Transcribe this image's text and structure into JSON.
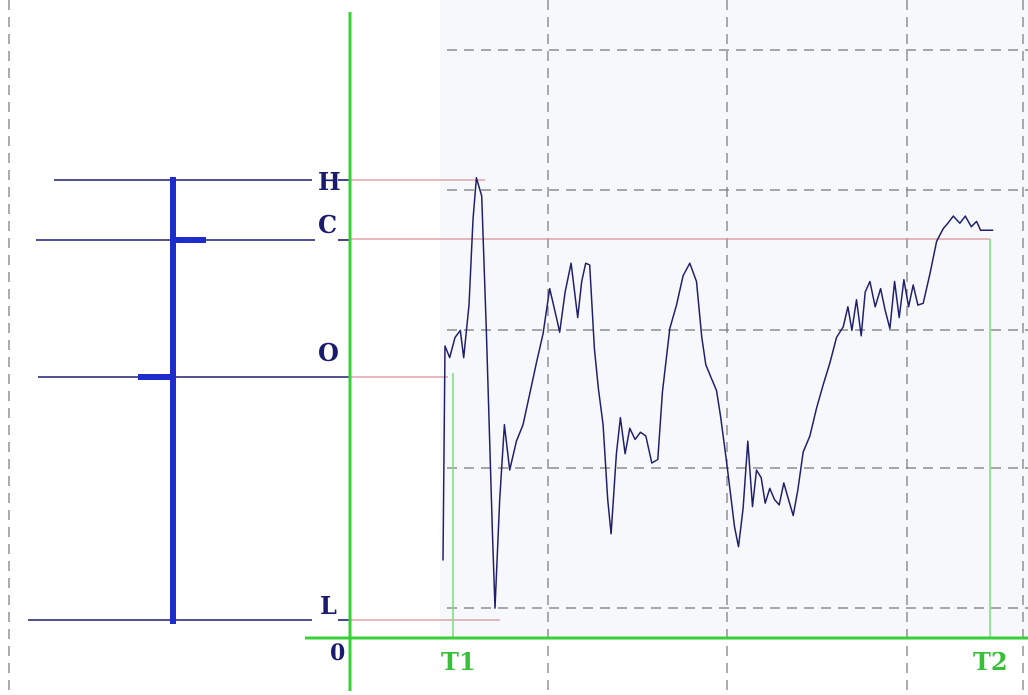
{
  "labels": {
    "high": "H",
    "close": "C",
    "open": "O",
    "low": "L",
    "origin": "0",
    "t1": "T1",
    "t2": "T2"
  },
  "colors": {
    "axis": "#38d038",
    "navy": "#1b1b6e",
    "bar": "#1f2ccc",
    "pink": "#d9909a",
    "grid": "#777777",
    "price_line": "#20206a",
    "t_line": "#7ee07e",
    "panel_bg": "#f6f8fb"
  },
  "chart_data": {
    "type": "line",
    "title": "",
    "xlabel": "",
    "ylabel": "",
    "x_tick_labels": [
      "T1",
      "T2"
    ],
    "y_tick_labels": [
      "L",
      "O",
      "C",
      "H"
    ],
    "ylim": [
      0,
      100
    ],
    "series": [
      {
        "values": [
          [
            0.0,
            13.6
          ],
          [
            0.3,
            61.8
          ],
          [
            1.0,
            59.2
          ],
          [
            1.8,
            63.7
          ],
          [
            2.6,
            65.3
          ],
          [
            3.1,
            59.2
          ],
          [
            3.9,
            71.0
          ],
          [
            4.5,
            90.2
          ],
          [
            5.0,
            99.6
          ],
          [
            5.8,
            95.5
          ],
          [
            6.5,
            64.9
          ],
          [
            7.4,
            20.0
          ],
          [
            7.8,
            2.9
          ],
          [
            8.5,
            27.3
          ],
          [
            9.2,
            44.1
          ],
          [
            10.0,
            33.9
          ],
          [
            11.0,
            40.4
          ],
          [
            12.0,
            44.1
          ],
          [
            13.0,
            51.0
          ],
          [
            14.0,
            58.0
          ],
          [
            15.0,
            64.5
          ],
          [
            16.0,
            74.7
          ],
          [
            17.0,
            68.2
          ],
          [
            17.5,
            64.9
          ],
          [
            18.3,
            73.9
          ],
          [
            19.2,
            80.4
          ],
          [
            20.2,
            68.2
          ],
          [
            20.8,
            76.3
          ],
          [
            21.4,
            80.4
          ],
          [
            22.0,
            80.0
          ],
          [
            22.7,
            61.2
          ],
          [
            23.3,
            52.2
          ],
          [
            24.0,
            44.1
          ],
          [
            24.7,
            27.3
          ],
          [
            25.2,
            19.6
          ],
          [
            26.0,
            37.6
          ],
          [
            26.6,
            45.7
          ],
          [
            27.3,
            37.6
          ],
          [
            28.0,
            43.3
          ],
          [
            28.8,
            40.8
          ],
          [
            29.6,
            42.4
          ],
          [
            30.4,
            41.6
          ],
          [
            31.3,
            35.5
          ],
          [
            32.2,
            36.3
          ],
          [
            32.9,
            51.4
          ],
          [
            34.0,
            65.7
          ],
          [
            35.0,
            71.0
          ],
          [
            36.0,
            77.6
          ],
          [
            37.0,
            80.4
          ],
          [
            38.0,
            76.3
          ],
          [
            38.8,
            63.7
          ],
          [
            39.4,
            57.6
          ],
          [
            40.2,
            54.7
          ],
          [
            41.0,
            51.8
          ],
          [
            41.6,
            46.1
          ],
          [
            42.4,
            37.1
          ],
          [
            43.1,
            28.6
          ],
          [
            43.7,
            21.2
          ],
          [
            44.3,
            16.7
          ],
          [
            45.0,
            25.3
          ],
          [
            45.7,
            40.4
          ],
          [
            46.4,
            25.7
          ],
          [
            47.0,
            33.9
          ],
          [
            47.7,
            32.2
          ],
          [
            48.3,
            26.5
          ],
          [
            49.0,
            29.8
          ],
          [
            49.7,
            27.3
          ],
          [
            50.4,
            26.1
          ],
          [
            51.1,
            31.0
          ],
          [
            51.8,
            27.3
          ],
          [
            52.5,
            23.7
          ],
          [
            53.2,
            29.4
          ],
          [
            54.0,
            38.0
          ],
          [
            55.0,
            41.6
          ],
          [
            56.0,
            47.8
          ],
          [
            57.0,
            53.1
          ],
          [
            58.0,
            58.0
          ],
          [
            59.0,
            63.7
          ],
          [
            60.0,
            66.1
          ],
          [
            60.7,
            70.6
          ],
          [
            61.3,
            65.3
          ],
          [
            62.0,
            72.2
          ],
          [
            62.7,
            64.1
          ],
          [
            63.3,
            73.9
          ],
          [
            64.0,
            76.3
          ],
          [
            64.8,
            70.6
          ],
          [
            65.6,
            74.7
          ],
          [
            66.3,
            69.8
          ],
          [
            67.0,
            65.7
          ],
          [
            67.7,
            76.3
          ],
          [
            68.4,
            68.2
          ],
          [
            69.1,
            76.7
          ],
          [
            69.8,
            70.6
          ],
          [
            70.5,
            75.5
          ],
          [
            71.2,
            71.0
          ],
          [
            72.0,
            71.4
          ],
          [
            73.0,
            78.0
          ],
          [
            74.0,
            85.3
          ],
          [
            75.0,
            88.2
          ],
          [
            75.7,
            89.4
          ],
          [
            76.5,
            91.0
          ],
          [
            77.5,
            89.4
          ],
          [
            78.3,
            91.0
          ],
          [
            79.2,
            88.6
          ],
          [
            80.0,
            89.8
          ],
          [
            80.6,
            87.8
          ],
          [
            81.5,
            87.8
          ],
          [
            82.5,
            87.8
          ]
        ]
      }
    ],
    "levels": {
      "H": 100,
      "C": 87.8,
      "O": 61.8,
      "L": 2.9
    },
    "t1_x": 0.3,
    "t2_x": 80.6,
    "grid": true
  }
}
